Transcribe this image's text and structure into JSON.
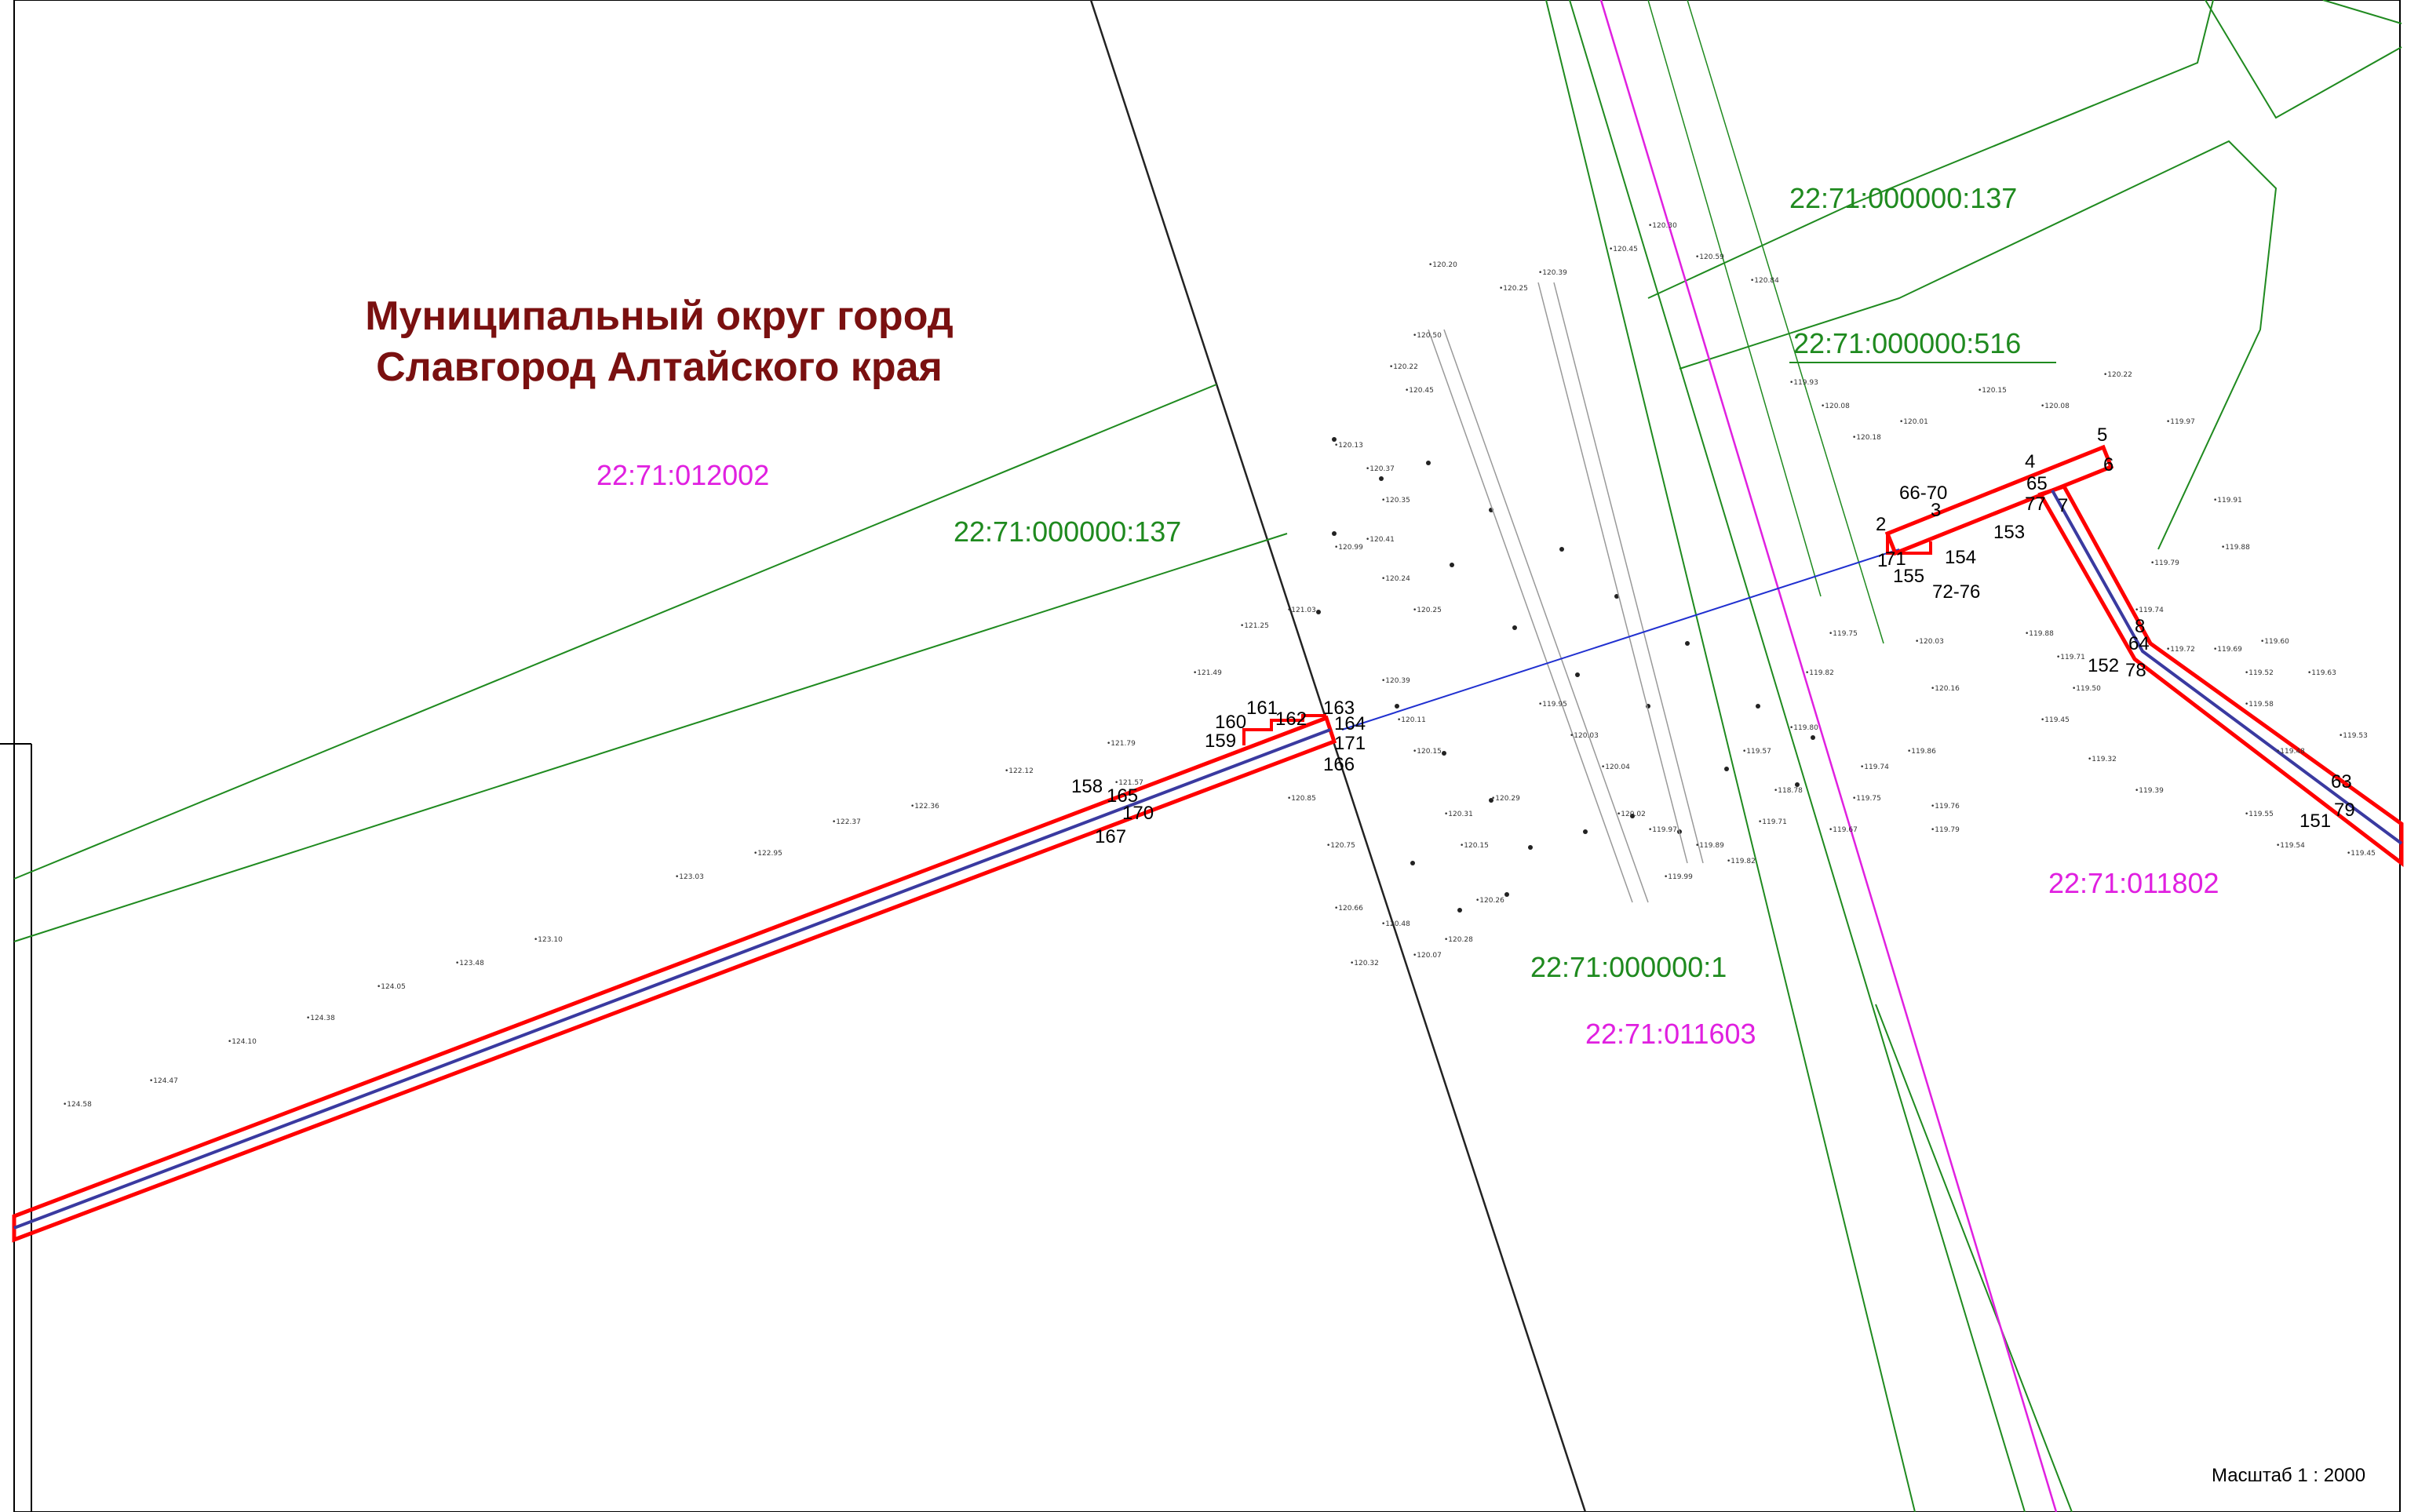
{
  "title": {
    "line1": "Муниципальный округ город",
    "line2": "Славгород Алтайского края"
  },
  "cadastral_labels": [
    {
      "text": "22:71:012002",
      "kind": "magenta"
    },
    {
      "text": "22:71:000000:137",
      "kind": "green"
    },
    {
      "text": "22:71:000000:137",
      "kind": "green"
    },
    {
      "text": "22:71:000000:516",
      "kind": "green"
    },
    {
      "text": "22:71:011802",
      "kind": "magenta"
    },
    {
      "text": "22:71:000000:1",
      "kind": "green"
    },
    {
      "text": "22:71:011603",
      "kind": "magenta"
    }
  ],
  "point_labels": [
    "158",
    "165",
    "170",
    "167",
    "160",
    "161",
    "162",
    "163",
    "164",
    "171",
    "166",
    "159",
    "2",
    "1",
    "71",
    "66-70",
    "3",
    "154",
    "155",
    "72-76",
    "4",
    "65",
    "77",
    "7",
    "153",
    "5",
    "6",
    "8",
    "64",
    "152",
    "78",
    "63",
    "151",
    "79"
  ],
  "elevation_marks": [
    "124.58",
    "124.47",
    "124.38",
    "124.10",
    "124.05",
    "123.48",
    "123.10",
    "123.03",
    "122.95",
    "122.37",
    "122.36",
    "122.12",
    "121.79",
    "121.57",
    "121.49",
    "121.25",
    "121.03",
    "120.99",
    "120.85",
    "120.75",
    "120.66",
    "120.48",
    "120.32",
    "120.07",
    "120.28",
    "120.26",
    "120.15",
    "120.31",
    "120.29",
    "120.15",
    "120.11",
    "120.39",
    "120.25",
    "120.24",
    "120.41",
    "120.35",
    "120.37",
    "120.13",
    "120.45",
    "120.50",
    "120.22",
    "120.20",
    "120.25",
    "120.39",
    "120.45",
    "120.30",
    "120.59",
    "120.84",
    "119.93",
    "120.08",
    "120.18",
    "120.01",
    "120.15",
    "120.08",
    "120.22",
    "119.97",
    "119.91",
    "119.88",
    "119.79",
    "119.74",
    "119.72",
    "119.69",
    "119.60",
    "119.52",
    "119.63",
    "119.58",
    "119.48",
    "119.53",
    "119.55",
    "119.54",
    "119.45",
    "119.39",
    "119.32",
    "119.45",
    "119.50",
    "119.71",
    "119.88",
    "120.03",
    "120.16",
    "119.86",
    "119.76",
    "119.79",
    "119.75",
    "119.74",
    "119.67",
    "119.71",
    "119.82",
    "119.89",
    "119.99",
    "119.97",
    "120.02",
    "120.04",
    "120.03",
    "119.95",
    "118.78",
    "119.57",
    "119.80",
    "119.82",
    "119.75"
  ],
  "scale": "Масштаб 1 : 2000",
  "colors": {
    "red_corridor": "#ff0000",
    "pipe": "#3a3aa0",
    "green_lines": "#1f8a1f",
    "magenta_line": "#e020e0",
    "blue_line": "#2030d0",
    "title": "#7a1010"
  }
}
